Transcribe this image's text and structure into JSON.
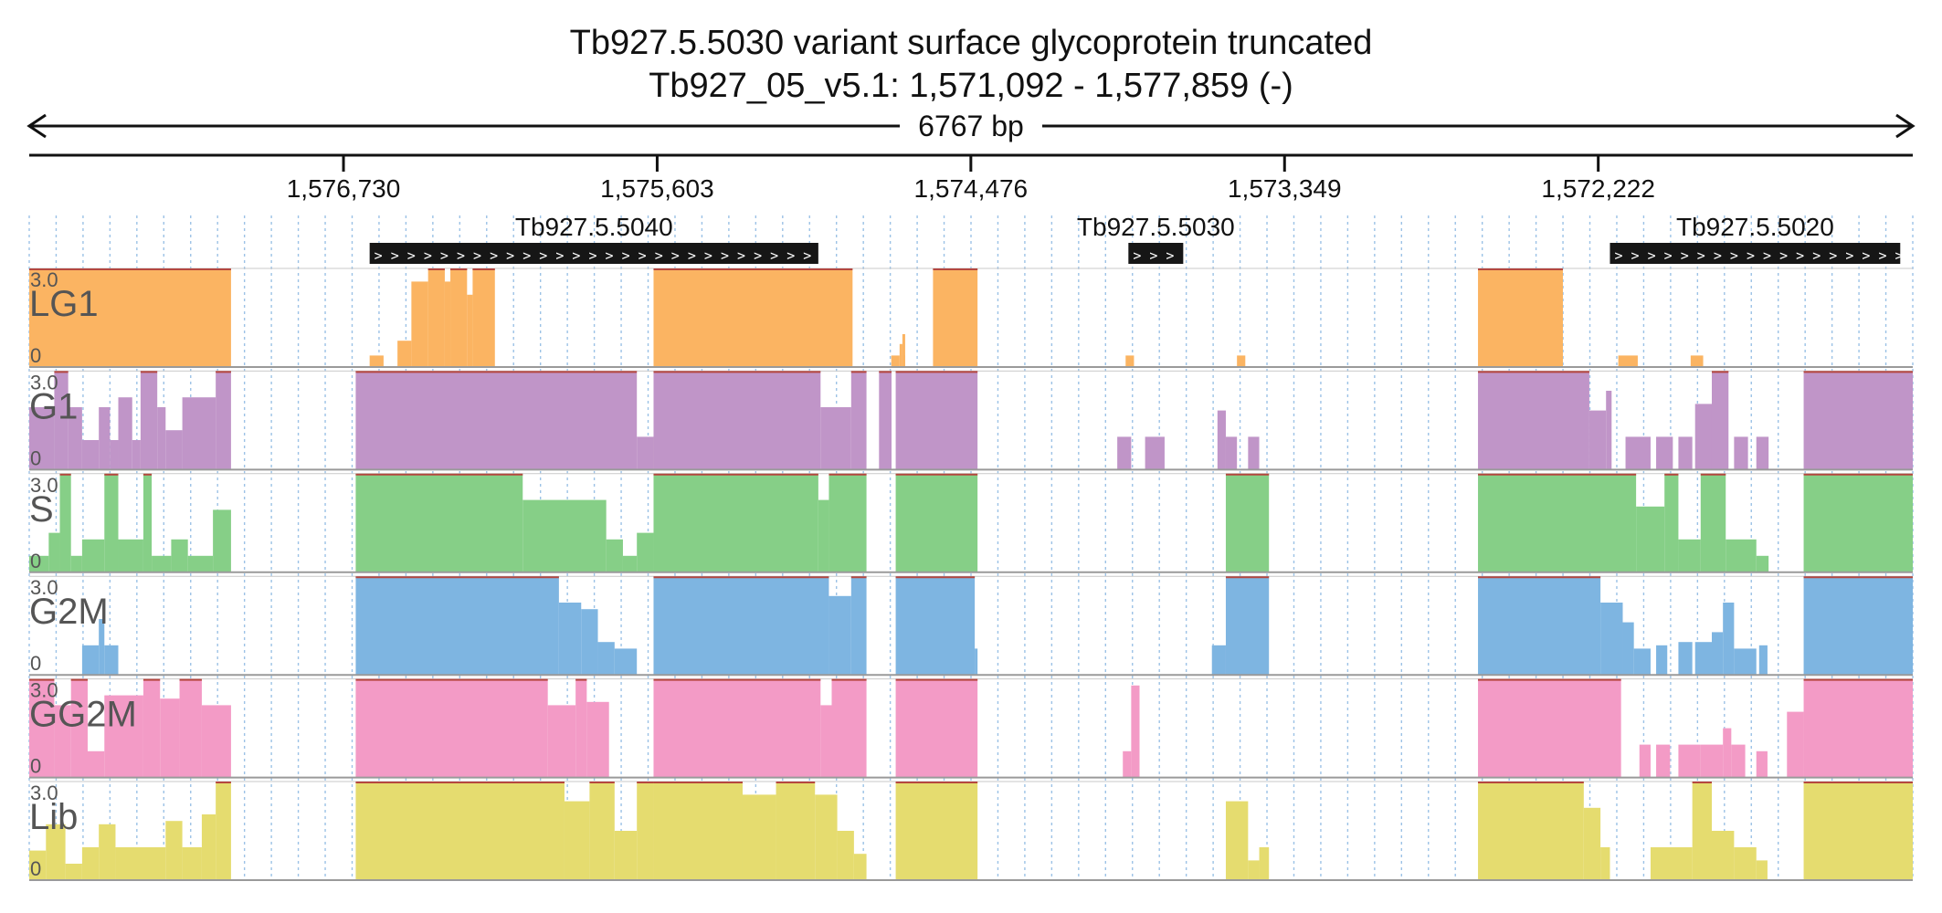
{
  "chart_data": {
    "type": "area",
    "title": "Tb927.5.5030  variant surface glycoprotein  truncated",
    "subtitle": "Tb927_05_v5.1: 1,571,092 - 1,577,859 (-)",
    "span_label": "6767 bp",
    "strand": "-",
    "region": {
      "start": 1571092,
      "end": 1577859
    },
    "x_ticks": [
      {
        "value": 1576730,
        "label": "1,576,730"
      },
      {
        "value": 1575603,
        "label": "1,575,603"
      },
      {
        "value": 1574476,
        "label": "1,574,476"
      },
      {
        "value": 1573349,
        "label": "1,573,349"
      },
      {
        "value": 1572222,
        "label": "1,572,222"
      }
    ],
    "genes": [
      {
        "name": "Tb927.5.5040",
        "start": 1576636,
        "end": 1575024,
        "arrows": "> > > > > > > > > > > > > > > > > > > > > > > > > > > > > > >"
      },
      {
        "name": "Tb927.5.5030",
        "start": 1573910,
        "end": 1573713,
        "arrows": "> > >"
      },
      {
        "name": "Tb927.5.5020",
        "start": 1572180,
        "end": 1571137,
        "arrows": "> > > > > > > > > > > > > > > > > > > > > >"
      }
    ],
    "y_range": [
      0,
      3.0
    ],
    "tracks": [
      {
        "name": "LG1",
        "color": "#fbb462",
        "max_label": "3.0",
        "min_label": "0",
        "segments": [
          [
            1577859,
            1577134,
            3.0
          ],
          [
            1576636,
            1576586,
            0.35
          ],
          [
            1576536,
            1576486,
            0.8
          ],
          [
            1576486,
            1576426,
            2.6
          ],
          [
            1576426,
            1576366,
            3.0
          ],
          [
            1576366,
            1576346,
            2.6
          ],
          [
            1576346,
            1576286,
            3.0
          ],
          [
            1576286,
            1576266,
            2.2
          ],
          [
            1576266,
            1576186,
            3.0
          ],
          [
            1575616,
            1574901,
            3.0
          ],
          [
            1574762,
            1574732,
            0.35
          ],
          [
            1574732,
            1574722,
            0.7
          ],
          [
            1574722,
            1574712,
            1.0
          ],
          [
            1574722,
            1574712,
            0.35
          ],
          [
            1574612,
            1574452,
            3.0
          ],
          [
            1573920,
            1573890,
            0.35
          ],
          [
            1573520,
            1573490,
            0.35
          ],
          [
            1572654,
            1572349,
            3.0
          ],
          [
            1572150,
            1572080,
            0.35
          ],
          [
            1571890,
            1571845,
            0.35
          ]
        ]
      },
      {
        "name": "G1",
        "color": "#c095c8",
        "max_label": "3.0",
        "min_label": "0",
        "segments": [
          [
            1577859,
            1577769,
            1.9
          ],
          [
            1577769,
            1577719,
            3.0
          ],
          [
            1577719,
            1577669,
            1.9
          ],
          [
            1577669,
            1577609,
            0.9
          ],
          [
            1577609,
            1577569,
            1.9
          ],
          [
            1577569,
            1577539,
            0.9
          ],
          [
            1577539,
            1577489,
            2.2
          ],
          [
            1577489,
            1577459,
            0.9
          ],
          [
            1577459,
            1577399,
            3.0
          ],
          [
            1577399,
            1577369,
            1.9
          ],
          [
            1577369,
            1577309,
            1.2
          ],
          [
            1577309,
            1577189,
            2.2
          ],
          [
            1577189,
            1577134,
            3.0
          ],
          [
            1576686,
            1575676,
            3.0
          ],
          [
            1575676,
            1575616,
            1.0
          ],
          [
            1575616,
            1575016,
            3.0
          ],
          [
            1575016,
            1574906,
            1.9
          ],
          [
            1574906,
            1574851,
            3.0
          ],
          [
            1574806,
            1574761,
            3.0
          ],
          [
            1574746,
            1574452,
            3.0
          ],
          [
            1573950,
            1573900,
            1.0
          ],
          [
            1573850,
            1573780,
            1.0
          ],
          [
            1573590,
            1573560,
            1.8
          ],
          [
            1573560,
            1573520,
            1.0
          ],
          [
            1573480,
            1573440,
            1.0
          ],
          [
            1572654,
            1572254,
            3.0
          ],
          [
            1572254,
            1572194,
            1.8
          ],
          [
            1572194,
            1572174,
            2.4
          ],
          [
            1572124,
            1572034,
            1.0
          ],
          [
            1572014,
            1571954,
            1.0
          ],
          [
            1571934,
            1571884,
            1.0
          ],
          [
            1571874,
            1571814,
            2.0
          ],
          [
            1571814,
            1571754,
            3.0
          ],
          [
            1571734,
            1571684,
            1.0
          ],
          [
            1571654,
            1571610,
            1.0
          ],
          [
            1571484,
            1571092,
            3.0
          ]
        ]
      },
      {
        "name": "S",
        "color": "#86cf87",
        "max_label": "3.0",
        "min_label": "0",
        "segments": [
          [
            1577859,
            1577789,
            0.5
          ],
          [
            1577789,
            1577749,
            1.2
          ],
          [
            1577749,
            1577709,
            3.0
          ],
          [
            1577709,
            1577669,
            0.5
          ],
          [
            1577669,
            1577589,
            1.0
          ],
          [
            1577589,
            1577539,
            3.0
          ],
          [
            1577539,
            1577449,
            1.0
          ],
          [
            1577449,
            1577419,
            3.0
          ],
          [
            1577419,
            1577349,
            0.5
          ],
          [
            1577349,
            1577289,
            1.0
          ],
          [
            1577289,
            1577199,
            0.5
          ],
          [
            1577199,
            1577134,
            1.9
          ],
          [
            1576686,
            1576086,
            3.0
          ],
          [
            1576086,
            1575786,
            2.2
          ],
          [
            1575786,
            1575726,
            1.0
          ],
          [
            1575726,
            1575676,
            0.5
          ],
          [
            1575676,
            1575616,
            1.2
          ],
          [
            1575616,
            1575024,
            3.0
          ],
          [
            1575024,
            1574986,
            2.2
          ],
          [
            1574986,
            1574851,
            3.0
          ],
          [
            1574746,
            1574452,
            3.0
          ],
          [
            1573560,
            1573405,
            3.0
          ],
          [
            1572654,
            1572086,
            3.0
          ],
          [
            1572086,
            1571984,
            2.0
          ],
          [
            1571984,
            1571934,
            3.0
          ],
          [
            1571934,
            1571854,
            1.0
          ],
          [
            1571854,
            1571764,
            3.0
          ],
          [
            1571764,
            1571654,
            1.0
          ],
          [
            1571654,
            1571610,
            0.5
          ],
          [
            1571484,
            1571092,
            3.0
          ]
        ]
      },
      {
        "name": "G2M",
        "color": "#7eb5e1",
        "max_label": "3.0",
        "min_label": "0",
        "segments": [
          [
            1577669,
            1577609,
            0.9
          ],
          [
            1577609,
            1577589,
            1.7
          ],
          [
            1577589,
            1577539,
            0.9
          ],
          [
            1576686,
            1575956,
            3.0
          ],
          [
            1575956,
            1575876,
            2.2
          ],
          [
            1575876,
            1575816,
            2.0
          ],
          [
            1575816,
            1575756,
            1.0
          ],
          [
            1575756,
            1575676,
            0.8
          ],
          [
            1575616,
            1574986,
            3.0
          ],
          [
            1574986,
            1574906,
            2.4
          ],
          [
            1574906,
            1574851,
            3.0
          ],
          [
            1574746,
            1574462,
            3.0
          ],
          [
            1574462,
            1574452,
            0.8
          ],
          [
            1573610,
            1573560,
            0.9
          ],
          [
            1573560,
            1573405,
            3.0
          ],
          [
            1572654,
            1572214,
            3.0
          ],
          [
            1572214,
            1572134,
            2.2
          ],
          [
            1572134,
            1572094,
            1.6
          ],
          [
            1572094,
            1572034,
            0.8
          ],
          [
            1572014,
            1571974,
            0.9
          ],
          [
            1571934,
            1571884,
            1.0
          ],
          [
            1571874,
            1571814,
            1.0
          ],
          [
            1571814,
            1571774,
            1.3
          ],
          [
            1571774,
            1571734,
            2.2
          ],
          [
            1571734,
            1571654,
            0.8
          ],
          [
            1571644,
            1571614,
            0.9
          ],
          [
            1571484,
            1571092,
            3.0
          ]
        ]
      },
      {
        "name": "GG2M",
        "color": "#f39bc6",
        "max_label": "3.0",
        "min_label": "0",
        "segments": [
          [
            1577859,
            1577769,
            3.0
          ],
          [
            1577769,
            1577709,
            2.2
          ],
          [
            1577709,
            1577649,
            3.0
          ],
          [
            1577649,
            1577589,
            0.8
          ],
          [
            1577589,
            1577449,
            2.5
          ],
          [
            1577449,
            1577389,
            3.0
          ],
          [
            1577389,
            1577319,
            2.4
          ],
          [
            1577319,
            1577239,
            3.0
          ],
          [
            1577239,
            1577134,
            2.2
          ],
          [
            1576686,
            1575996,
            3.0
          ],
          [
            1575996,
            1575896,
            2.2
          ],
          [
            1575896,
            1575856,
            3.0
          ],
          [
            1575856,
            1575776,
            2.3
          ],
          [
            1575616,
            1575016,
            3.0
          ],
          [
            1575016,
            1574976,
            2.2
          ],
          [
            1574976,
            1574851,
            3.0
          ],
          [
            1574746,
            1574452,
            3.0
          ],
          [
            1573930,
            1573900,
            0.8
          ],
          [
            1573900,
            1573870,
            2.8
          ],
          [
            1572654,
            1572140,
            3.0
          ],
          [
            1572074,
            1572034,
            1.0
          ],
          [
            1572014,
            1571964,
            1.0
          ],
          [
            1571934,
            1571854,
            1.0
          ],
          [
            1571854,
            1571774,
            1.0
          ],
          [
            1571774,
            1571744,
            1.5
          ],
          [
            1571744,
            1571694,
            1.0
          ],
          [
            1571654,
            1571614,
            0.8
          ],
          [
            1571544,
            1571484,
            2.0
          ],
          [
            1571484,
            1571092,
            3.0
          ]
        ]
      },
      {
        "name": "Lib",
        "color": "#e5dc6f",
        "max_label": "3.0",
        "min_label": "0",
        "segments": [
          [
            1577859,
            1577799,
            0.9
          ],
          [
            1577799,
            1577729,
            1.7
          ],
          [
            1577729,
            1577669,
            0.5
          ],
          [
            1577669,
            1577609,
            1.0
          ],
          [
            1577609,
            1577549,
            1.7
          ],
          [
            1577549,
            1577369,
            1.0
          ],
          [
            1577369,
            1577309,
            1.8
          ],
          [
            1577309,
            1577239,
            1.0
          ],
          [
            1577239,
            1577189,
            2.0
          ],
          [
            1577189,
            1577134,
            3.0
          ],
          [
            1576686,
            1575936,
            3.0
          ],
          [
            1575936,
            1575846,
            2.4
          ],
          [
            1575846,
            1575756,
            3.0
          ],
          [
            1575756,
            1575676,
            1.5
          ],
          [
            1575676,
            1575616,
            3.0
          ],
          [
            1575616,
            1575296,
            3.0
          ],
          [
            1575296,
            1575176,
            2.6
          ],
          [
            1575176,
            1575036,
            3.0
          ],
          [
            1575036,
            1574956,
            2.6
          ],
          [
            1574956,
            1574896,
            1.5
          ],
          [
            1574896,
            1574851,
            0.8
          ],
          [
            1574746,
            1574452,
            3.0
          ],
          [
            1573560,
            1573480,
            2.4
          ],
          [
            1573480,
            1573440,
            0.6
          ],
          [
            1573440,
            1573405,
            1.0
          ],
          [
            1572654,
            1572274,
            3.0
          ],
          [
            1572274,
            1572214,
            2.2
          ],
          [
            1572214,
            1572180,
            1.0
          ],
          [
            1572034,
            1571884,
            1.0
          ],
          [
            1571884,
            1571814,
            3.0
          ],
          [
            1571814,
            1571734,
            1.5
          ],
          [
            1571734,
            1571654,
            1.0
          ],
          [
            1571654,
            1571614,
            0.6
          ],
          [
            1571484,
            1571092,
            3.0
          ]
        ]
      }
    ]
  }
}
